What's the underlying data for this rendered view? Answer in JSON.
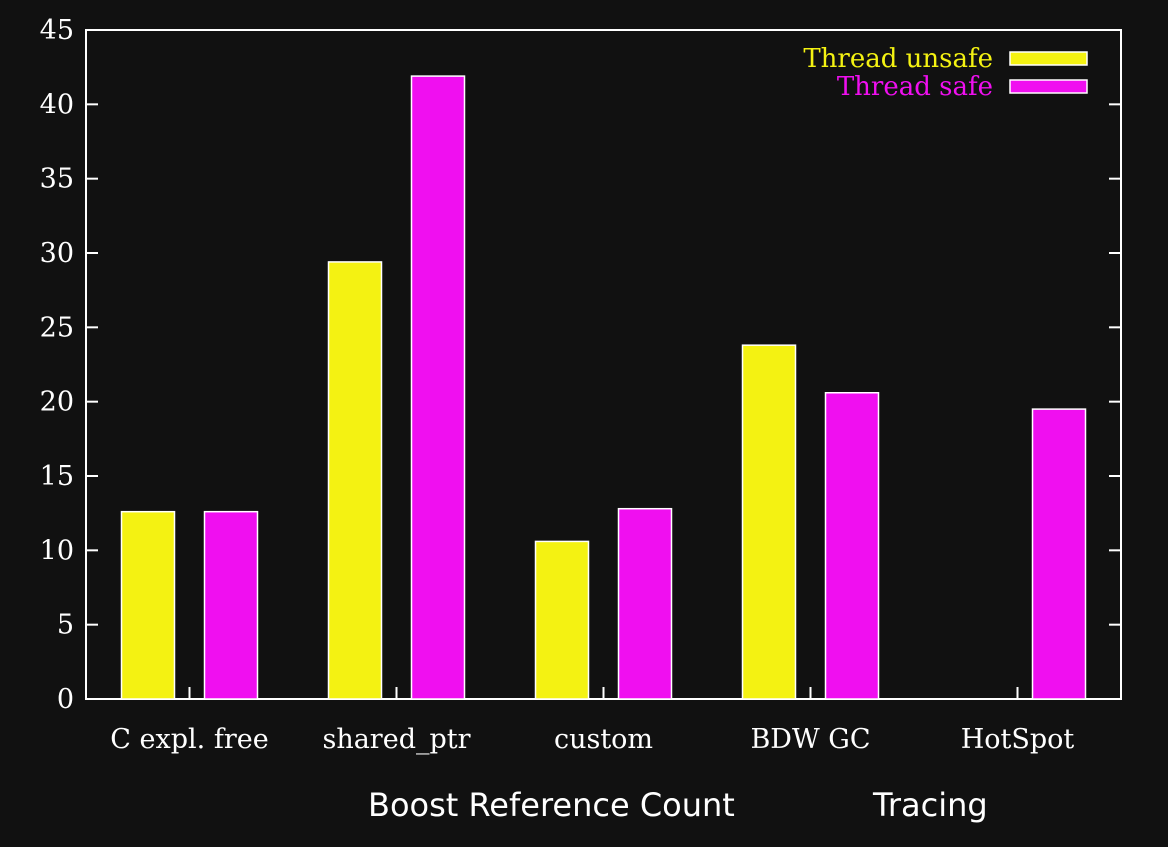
{
  "chart_data": {
    "type": "bar",
    "categories": [
      "C expl. free",
      "shared_ptr",
      "custom",
      "BDW GC",
      "HotSpot"
    ],
    "series": [
      {
        "name": "Thread unsafe",
        "color": "#f4f212",
        "values": [
          12.6,
          29.4,
          10.6,
          23.8,
          null
        ]
      },
      {
        "name": "Thread safe",
        "color": "#f00ff0",
        "values": [
          12.6,
          41.9,
          12.8,
          20.6,
          19.5
        ]
      }
    ],
    "ylim": [
      0,
      45
    ],
    "yticks": [
      0,
      5,
      10,
      15,
      20,
      25,
      30,
      35,
      40,
      45
    ],
    "grid": false,
    "legend_position": "top-right",
    "annotations": [
      {
        "text": "Boost Reference Count"
      },
      {
        "text": "Tracing"
      }
    ]
  }
}
